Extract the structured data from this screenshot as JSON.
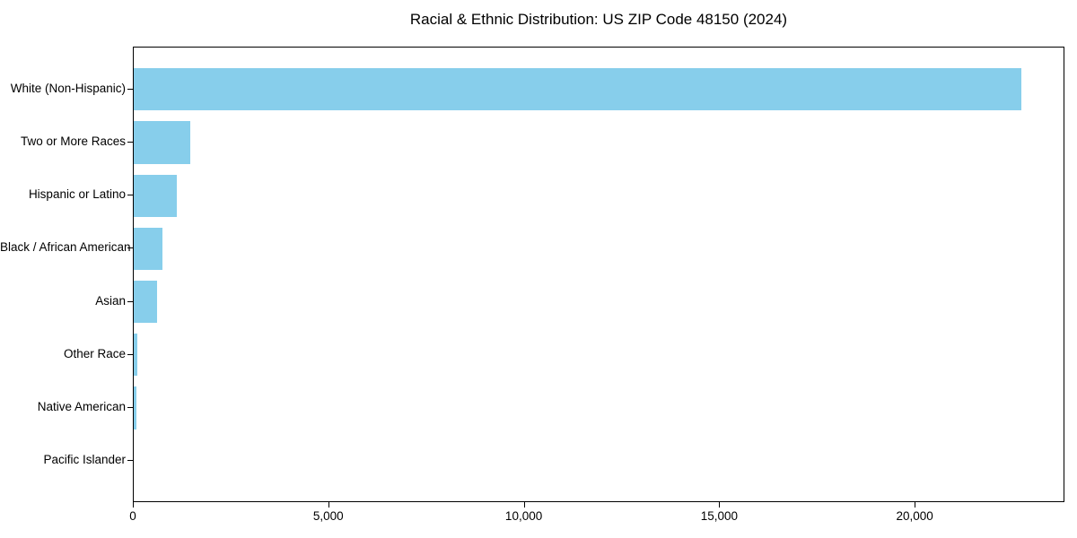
{
  "chart_data": {
    "type": "bar",
    "orientation": "horizontal",
    "title": "Racial & Ethnic Distribution: US ZIP Code 48150 (2024)",
    "xlabel": "",
    "ylabel": "",
    "categories": [
      "White (Non-Hispanic)",
      "Two or More Races",
      "Hispanic or Latino",
      "Black / African American",
      "Asian",
      "Other Race",
      "Native American",
      "Pacific Islander"
    ],
    "values": [
      22700,
      1450,
      1100,
      730,
      600,
      100,
      60,
      0
    ],
    "xlim": [
      0,
      23830
    ],
    "x_ticks": [
      0,
      5000,
      10000,
      15000,
      20000
    ],
    "x_tick_labels": [
      "0",
      "5,000",
      "10,000",
      "15,000",
      "20,000"
    ],
    "bar_color": "#87CEEB",
    "axis_color": "#000000",
    "text_color": "#000000",
    "background_color": "#FFFFFF",
    "grid": false,
    "legend": false
  }
}
